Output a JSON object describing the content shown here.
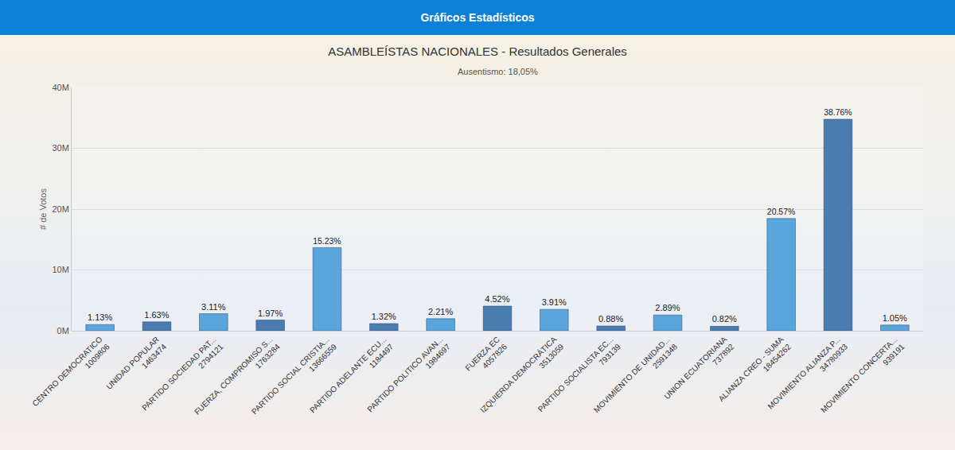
{
  "header": "Gráficos Estadísticos",
  "chart_data": {
    "type": "bar",
    "title": "ASAMBLEÍSTAS NACIONALES - Resultados Generales",
    "subtitle": "Ausentismo: 18,05%",
    "y_label": "# de Votos",
    "categories": [
      "CENTRO DEMOCRATICO",
      "UNIDAD POPULAR",
      "PARTIDO SOCIEDAD PAT...",
      "FUERZA, COMPROMISO S...",
      "PARTIDO SOCIAL CRISTIA...",
      "PARTIDO ADELANTE ECU...",
      "PARTIDO POLITICO AVAN...",
      "FUERZA EC",
      "IZQUIERDA DEMOCRÁTICA",
      "PARTIDO SOCIALISTA EC...",
      "MOVIMIENTO DE UNIDAD...",
      "UNION ECUATORIANA",
      "ALIANZA CREO - SUMA",
      "MOVIMIENTO ALIANZA P...",
      "MOVIMIENTO CONCERTA..."
    ],
    "values": [
      1009806,
      1463474,
      2794121,
      1763284,
      13666559,
      1184497,
      1984697,
      4057826,
      3513059,
      793139,
      2591348,
      737892,
      18454262,
      34780933,
      939191
    ],
    "percent_labels": [
      "1.13%",
      "1.63%",
      "3.11%",
      "1.97%",
      "15.23%",
      "1.32%",
      "2.21%",
      "4.52%",
      "3.91%",
      "0.88%",
      "2.89%",
      "0.82%",
      "20.57%",
      "38.76%",
      "1.05%"
    ],
    "colors": [
      "#5aa5dc",
      "#4a7cb0",
      "#5aa5dc",
      "#4a7cb0",
      "#5aa5dc",
      "#4a7cb0",
      "#5aa5dc",
      "#4a7cb0",
      "#5aa5dc",
      "#4a7cb0",
      "#5aa5dc",
      "#4a7cb0",
      "#5aa5dc",
      "#4a7cb0",
      "#5aa5dc"
    ],
    "ylim": [
      0,
      40000000
    ],
    "yticks": [
      {
        "value": 0,
        "label": "0M"
      },
      {
        "value": 10000000,
        "label": "10M"
      },
      {
        "value": 20000000,
        "label": "20M"
      },
      {
        "value": 30000000,
        "label": "30M"
      },
      {
        "value": 40000000,
        "label": "40M"
      }
    ],
    "grid": true
  }
}
